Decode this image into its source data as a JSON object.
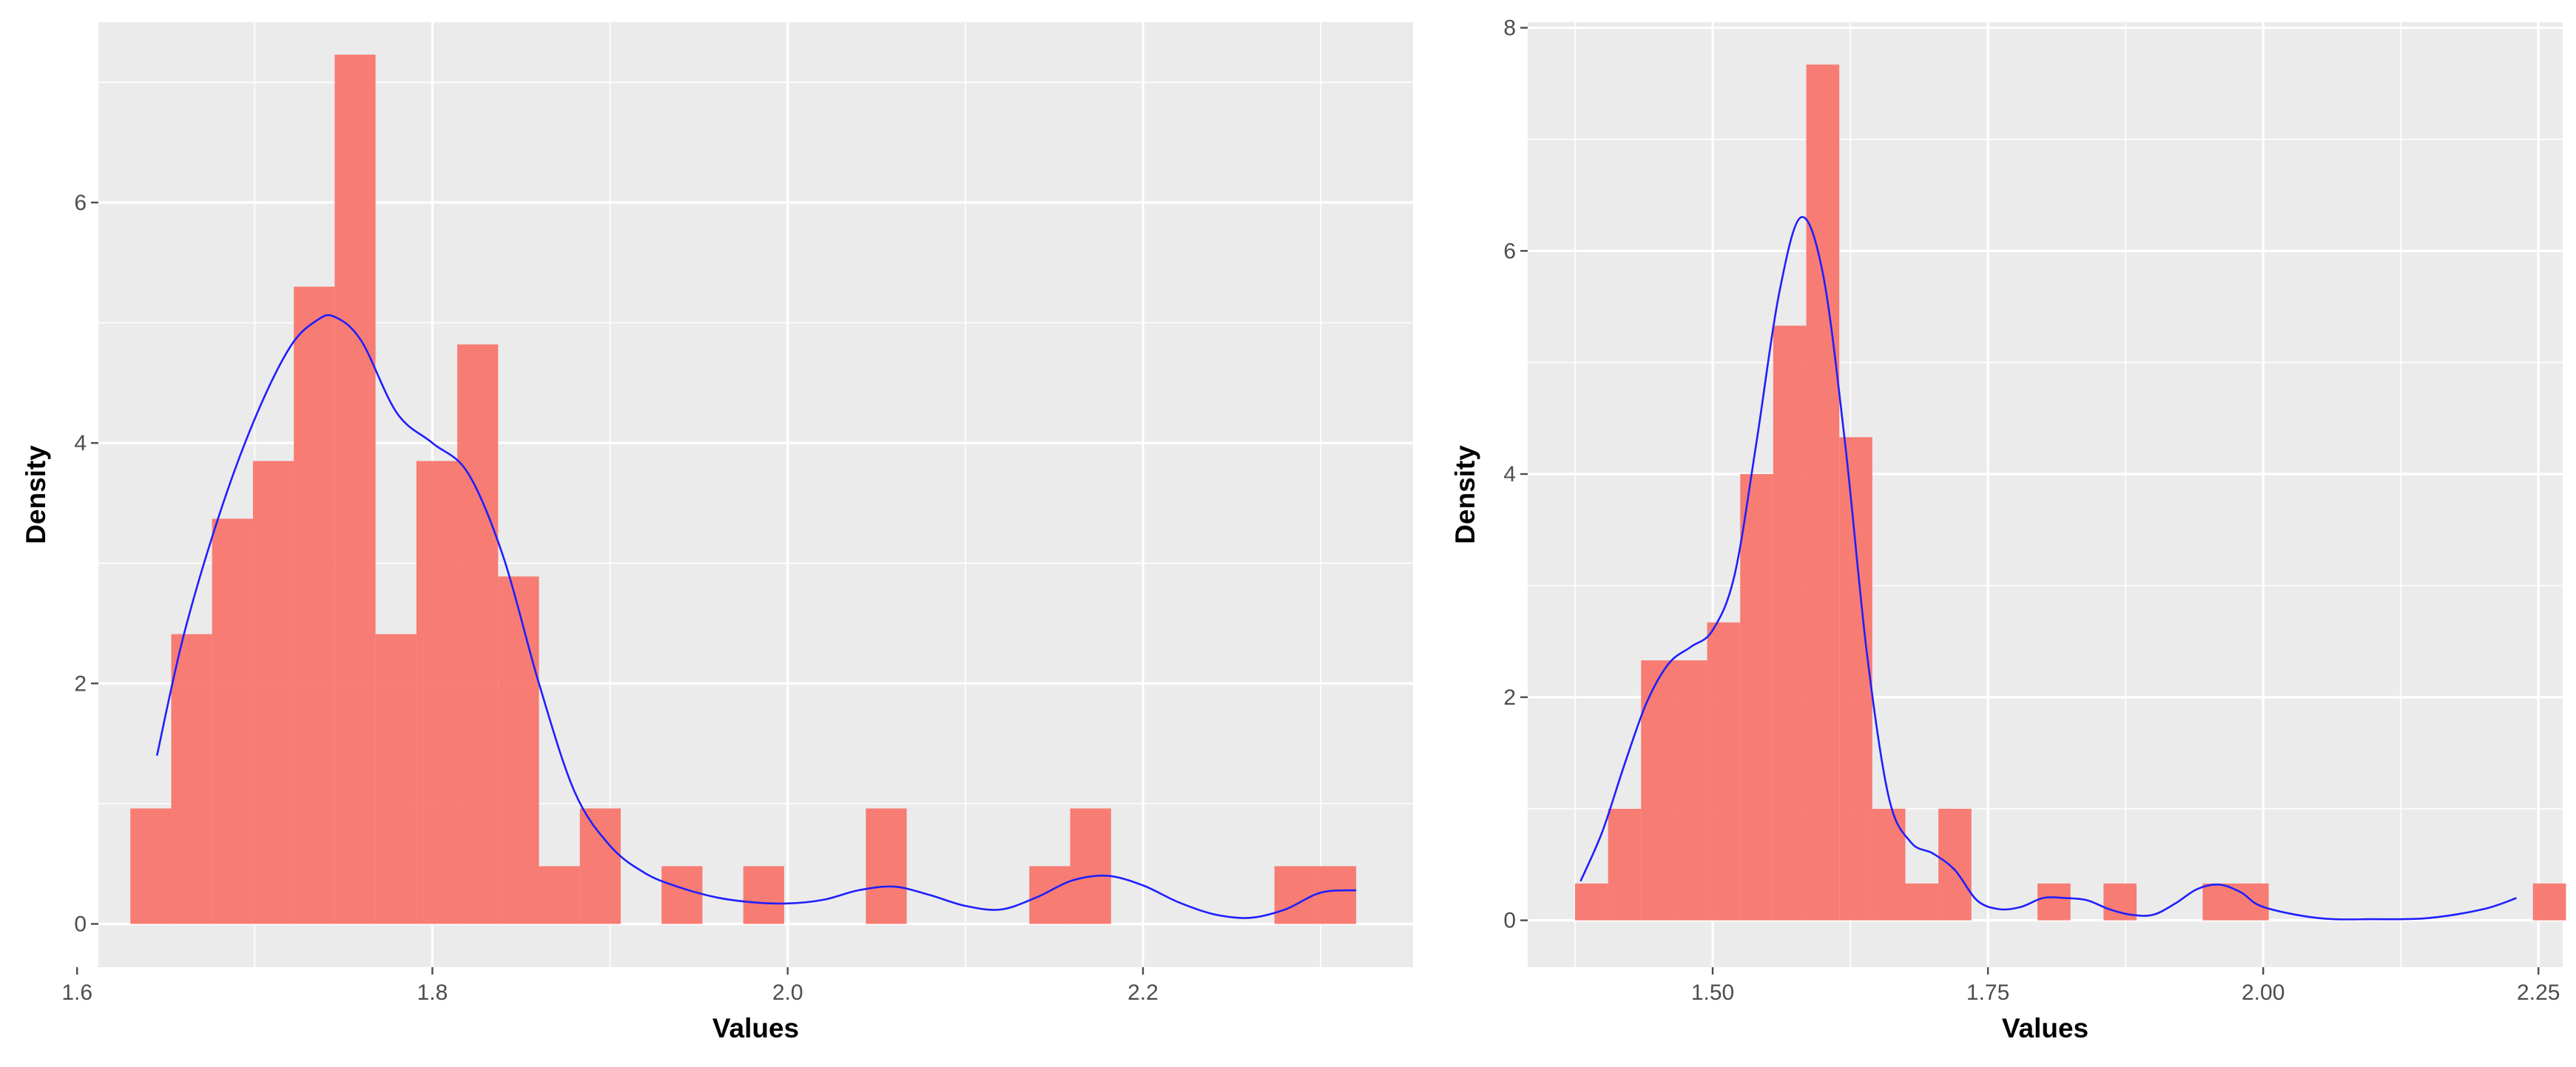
{
  "chart_data": [
    {
      "type": "bar",
      "subtype": "histogram-with-density",
      "xlabel": "Values",
      "ylabel": "Density",
      "xlim": [
        1.612,
        2.352
      ],
      "ylim": [
        -0.36,
        7.5
      ],
      "x_ticks": [
        1.6,
        1.8,
        2.0,
        2.2
      ],
      "x_tick_labels": [
        "1.6",
        "1.8",
        "2.0",
        "2.2"
      ],
      "x_minor": [
        1.7,
        1.9,
        2.1,
        2.3
      ],
      "y_ticks": [
        0,
        2,
        4,
        6
      ],
      "y_tick_labels": [
        "0",
        "2",
        "4",
        "6"
      ],
      "y_minor": [
        1,
        3,
        5,
        7
      ],
      "grid": true,
      "legend": "none",
      "colors": {
        "bars": "#f8766d",
        "density": "#1f1fff",
        "panel": "#ebebeb",
        "grid": "#ffffff"
      },
      "bins": [
        {
          "x0": 1.63,
          "x1": 1.653,
          "density": 0.96
        },
        {
          "x0": 1.653,
          "x1": 1.676,
          "density": 2.41
        },
        {
          "x0": 1.676,
          "x1": 1.699,
          "density": 3.37
        },
        {
          "x0": 1.699,
          "x1": 1.722,
          "density": 3.85
        },
        {
          "x0": 1.722,
          "x1": 1.745,
          "density": 5.3
        },
        {
          "x0": 1.745,
          "x1": 1.768,
          "density": 7.23
        },
        {
          "x0": 1.768,
          "x1": 1.791,
          "density": 2.41
        },
        {
          "x0": 1.791,
          "x1": 1.814,
          "density": 3.85
        },
        {
          "x0": 1.814,
          "x1": 1.837,
          "density": 4.82
        },
        {
          "x0": 1.837,
          "x1": 1.86,
          "density": 2.89
        },
        {
          "x0": 1.86,
          "x1": 1.883,
          "density": 0.48
        },
        {
          "x0": 1.883,
          "x1": 1.906,
          "density": 0.96
        },
        {
          "x0": 1.929,
          "x1": 1.952,
          "density": 0.48
        },
        {
          "x0": 1.975,
          "x1": 1.998,
          "density": 0.48
        },
        {
          "x0": 2.044,
          "x1": 2.067,
          "density": 0.96
        },
        {
          "x0": 2.136,
          "x1": 2.159,
          "density": 0.48
        },
        {
          "x0": 2.159,
          "x1": 2.182,
          "density": 0.96
        },
        {
          "x0": 2.274,
          "x1": 2.297,
          "density": 0.48
        },
        {
          "x0": 2.297,
          "x1": 2.32,
          "density": 0.48
        }
      ],
      "density_curve": {
        "x": [
          1.645,
          1.66,
          1.68,
          1.7,
          1.72,
          1.735,
          1.745,
          1.76,
          1.78,
          1.8,
          1.82,
          1.84,
          1.86,
          1.88,
          1.9,
          1.92,
          1.94,
          1.96,
          1.98,
          2.0,
          2.02,
          2.04,
          2.06,
          2.08,
          2.1,
          2.12,
          2.14,
          2.16,
          2.18,
          2.2,
          2.22,
          2.24,
          2.26,
          2.28,
          2.3,
          2.32
        ],
        "y": [
          1.4,
          2.4,
          3.4,
          4.2,
          4.8,
          5.02,
          5.05,
          4.85,
          4.25,
          4.0,
          3.75,
          3.05,
          2.0,
          1.1,
          0.65,
          0.42,
          0.3,
          0.22,
          0.18,
          0.17,
          0.2,
          0.28,
          0.31,
          0.24,
          0.15,
          0.12,
          0.22,
          0.36,
          0.4,
          0.32,
          0.18,
          0.08,
          0.05,
          0.12,
          0.26,
          0.28
        ]
      }
    },
    {
      "type": "bar",
      "subtype": "histogram-with-density",
      "xlabel": "Values",
      "ylabel": "Density",
      "xlim": [
        1.332,
        2.272
      ],
      "ylim": [
        -0.42,
        8.05
      ],
      "x_ticks": [
        1.5,
        1.75,
        2.0,
        2.25
      ],
      "x_tick_labels": [
        "1.50",
        "1.75",
        "2.00",
        "2.25"
      ],
      "x_minor": [
        1.375,
        1.625,
        1.875,
        2.125
      ],
      "y_ticks": [
        0,
        2,
        4,
        6,
        8
      ],
      "y_tick_labels": [
        "0",
        "2",
        "4",
        "6",
        "8"
      ],
      "y_minor": [
        1,
        3,
        5,
        7
      ],
      "grid": true,
      "legend": "none",
      "colors": {
        "bars": "#f8766d",
        "density": "#1f1fff",
        "panel": "#ebebeb",
        "grid": "#ffffff"
      },
      "bins": [
        {
          "x0": 1.375,
          "x1": 1.405,
          "density": 0.33
        },
        {
          "x0": 1.405,
          "x1": 1.435,
          "density": 1.0
        },
        {
          "x0": 1.435,
          "x1": 1.465,
          "density": 2.33
        },
        {
          "x0": 1.465,
          "x1": 1.495,
          "density": 2.33
        },
        {
          "x0": 1.495,
          "x1": 1.525,
          "density": 2.67
        },
        {
          "x0": 1.525,
          "x1": 1.555,
          "density": 4.0
        },
        {
          "x0": 1.555,
          "x1": 1.585,
          "density": 5.33
        },
        {
          "x0": 1.585,
          "x1": 1.615,
          "density": 7.67
        },
        {
          "x0": 1.615,
          "x1": 1.645,
          "density": 4.33
        },
        {
          "x0": 1.645,
          "x1": 1.675,
          "density": 1.0
        },
        {
          "x0": 1.675,
          "x1": 1.705,
          "density": 0.33
        },
        {
          "x0": 1.705,
          "x1": 1.735,
          "density": 1.0
        },
        {
          "x0": 1.795,
          "x1": 1.825,
          "density": 0.33
        },
        {
          "x0": 1.855,
          "x1": 1.885,
          "density": 0.33
        },
        {
          "x0": 1.945,
          "x1": 1.975,
          "density": 0.33
        },
        {
          "x0": 1.975,
          "x1": 2.005,
          "density": 0.33
        },
        {
          "x0": 2.245,
          "x1": 2.275,
          "density": 0.33
        }
      ],
      "density_curve": {
        "x": [
          1.38,
          1.4,
          1.42,
          1.44,
          1.46,
          1.48,
          1.5,
          1.52,
          1.54,
          1.56,
          1.58,
          1.6,
          1.62,
          1.64,
          1.66,
          1.68,
          1.7,
          1.72,
          1.74,
          1.76,
          1.78,
          1.8,
          1.82,
          1.84,
          1.86,
          1.88,
          1.9,
          1.92,
          1.94,
          1.96,
          1.98,
          2.0,
          2.05,
          2.1,
          2.15,
          2.2,
          2.23
        ],
        "y": [
          0.35,
          0.8,
          1.4,
          1.95,
          2.3,
          2.45,
          2.6,
          3.1,
          4.3,
          5.6,
          6.3,
          5.8,
          4.3,
          2.4,
          1.1,
          0.7,
          0.6,
          0.45,
          0.18,
          0.1,
          0.12,
          0.2,
          0.2,
          0.18,
          0.1,
          0.05,
          0.05,
          0.15,
          0.28,
          0.32,
          0.25,
          0.12,
          0.02,
          0.01,
          0.02,
          0.1,
          0.2
        ]
      }
    }
  ]
}
